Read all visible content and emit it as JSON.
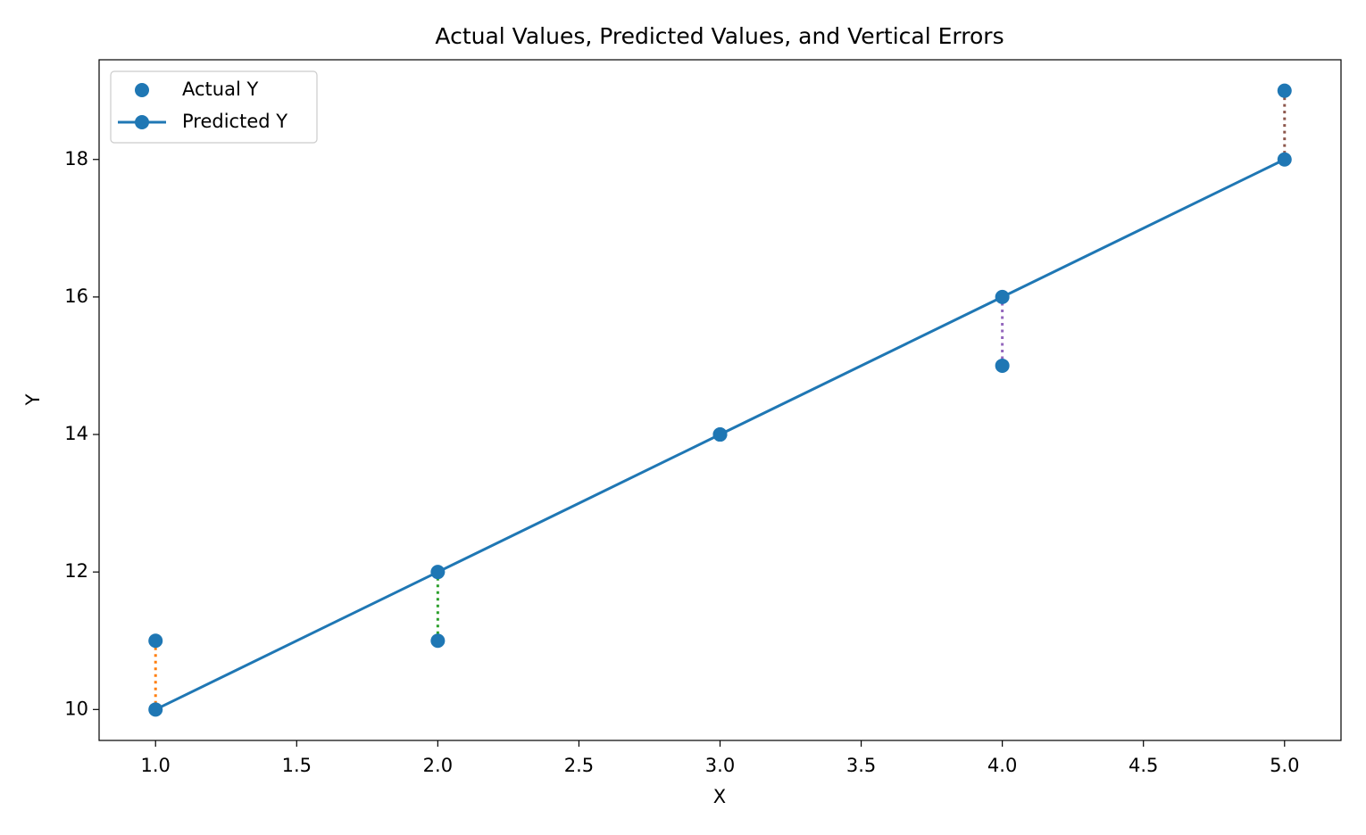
{
  "chart_data": {
    "type": "line",
    "title": "Actual Values, Predicted Values, and Vertical Errors",
    "x_label": "X",
    "y_label": "Y",
    "x": [
      1,
      2,
      3,
      4,
      5
    ],
    "series": [
      {
        "name": "Actual Y",
        "style": "scatter",
        "color": "#1f77b4",
        "values": [
          11,
          11,
          14,
          15,
          19
        ]
      },
      {
        "name": "Predicted Y",
        "style": "line-marker",
        "color": "#1f77b4",
        "values": [
          10,
          12,
          14,
          16,
          18
        ]
      }
    ],
    "error_colors": [
      "#ff7f0e",
      "#2ca02c",
      "#d62728",
      "#9467bd",
      "#8c564b"
    ],
    "xlim": [
      0.8,
      5.2
    ],
    "xticks": [
      {
        "value": 1,
        "label": "1.0"
      },
      1.5,
      {
        "value": 2,
        "label": "2.0"
      },
      2.5,
      {
        "value": 3,
        "label": "3.0"
      },
      3.5,
      {
        "value": 4,
        "label": "4.0"
      },
      4.5,
      {
        "value": 5,
        "label": "5.0"
      }
    ],
    "ylim": [
      9.55,
      19.45
    ],
    "yticks": [
      10,
      12,
      14,
      16,
      18
    ],
    "grid": false,
    "legend": "upper-left"
  }
}
